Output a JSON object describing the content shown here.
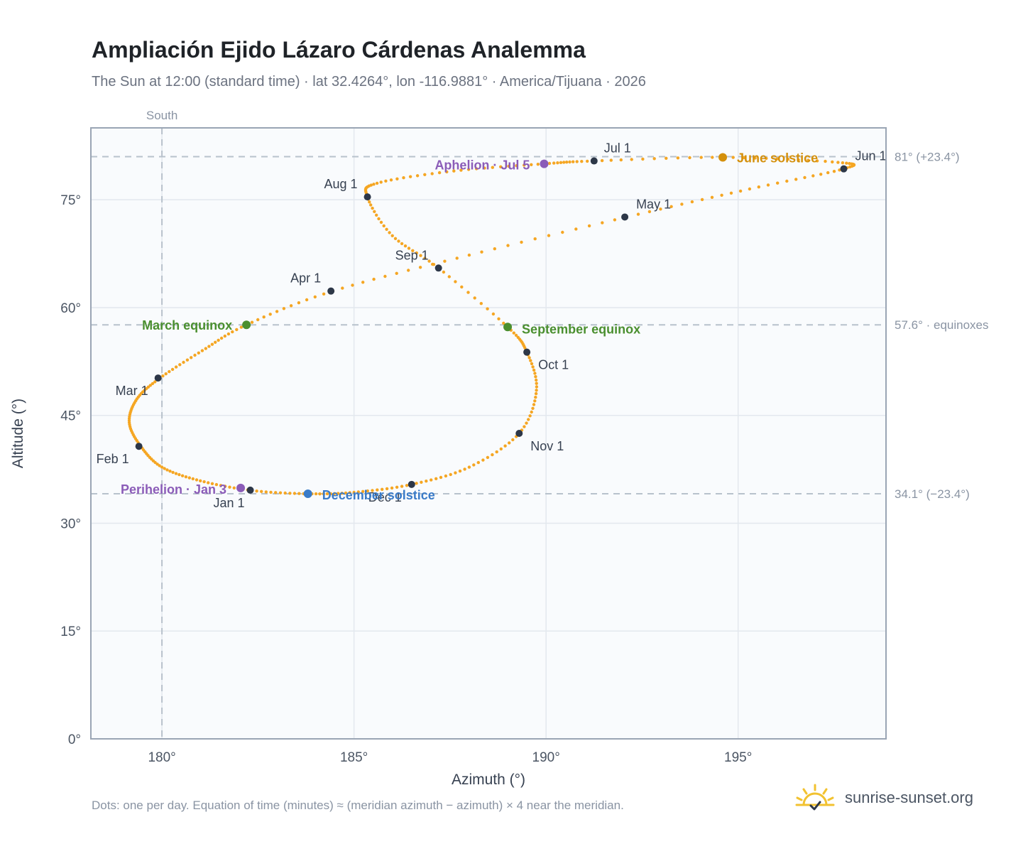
{
  "header": {
    "title": "Ampliación Ejido Lázaro Cárdenas Analemma",
    "subtitle": "The Sun at 12:00 (standard time) · lat 32.4264°, lon -116.9881° · America/Tijuana · 2026"
  },
  "footer": {
    "note": "Dots: one per day. Equation of time (minutes) ≈ (meridian azimuth − azimuth) × 4 near the meridian.",
    "brand": "sunrise-sunset.org"
  },
  "colors": {
    "curve": "#f5a623",
    "month_dot": "#2d3748",
    "equinox": "#4a8f2f",
    "june_solstice": "#d4900c",
    "december_solstice": "#3a7bc8",
    "apsis": "#8b5cb8",
    "reference_line": "#b8c2cc",
    "grid": "#e3e8ee",
    "plot_bg": "#f9fbfd",
    "axis_border": "#9aa5b4"
  },
  "chart_data": {
    "type": "scatter",
    "xlabel": "Azimuth (°)",
    "ylabel": "Altitude (°)",
    "xlim": [
      178.15,
      198.85
    ],
    "ylim": [
      0,
      85
    ],
    "x_ticks": [
      180,
      185,
      190,
      195
    ],
    "x_tick_labels": [
      "180°",
      "185°",
      "190°",
      "195°"
    ],
    "y_ticks": [
      0,
      15,
      30,
      45,
      60,
      75
    ],
    "y_tick_labels": [
      "0°",
      "15°",
      "30°",
      "45°",
      "60°",
      "75°"
    ],
    "grid": true,
    "meridian": {
      "azimuth": 180,
      "label": "South"
    },
    "reference_lines": [
      {
        "altitude": 81.0,
        "label": "81° (+23.4°)"
      },
      {
        "altitude": 57.6,
        "label": "57.6° · equinoxes"
      },
      {
        "altitude": 34.1,
        "label": "34.1° (−23.4°)"
      }
    ],
    "daily_path": [
      {
        "az": 182.35,
        "alt": 34.55
      },
      {
        "az": 181.0,
        "alt": 35.9
      },
      {
        "az": 180.0,
        "alt": 37.8
      },
      {
        "az": 179.45,
        "alt": 40.7
      },
      {
        "az": 179.15,
        "alt": 44.0
      },
      {
        "az": 179.35,
        "alt": 47.3
      },
      {
        "az": 179.95,
        "alt": 50.2
      },
      {
        "az": 181.05,
        "alt": 54.0
      },
      {
        "az": 182.2,
        "alt": 57.6
      },
      {
        "az": 184.45,
        "alt": 62.3
      },
      {
        "az": 188.0,
        "alt": 67.3
      },
      {
        "az": 192.1,
        "alt": 72.6
      },
      {
        "az": 195.3,
        "alt": 76.5
      },
      {
        "az": 197.75,
        "alt": 79.3
      },
      {
        "az": 197.6,
        "alt": 80.2
      },
      {
        "az": 194.6,
        "alt": 80.9
      },
      {
        "az": 191.25,
        "alt": 80.4
      },
      {
        "az": 189.95,
        "alt": 80.0
      },
      {
        "az": 187.6,
        "alt": 79.0
      },
      {
        "az": 185.6,
        "alt": 77.3
      },
      {
        "az": 185.35,
        "alt": 75.4
      },
      {
        "az": 186.0,
        "alt": 70.0
      },
      {
        "az": 187.2,
        "alt": 65.5
      },
      {
        "az": 189.0,
        "alt": 57.3
      },
      {
        "az": 189.5,
        "alt": 53.8
      },
      {
        "az": 189.75,
        "alt": 48.5
      },
      {
        "az": 189.3,
        "alt": 42.5
      },
      {
        "az": 188.0,
        "alt": 37.8
      },
      {
        "az": 186.5,
        "alt": 35.4
      },
      {
        "az": 185.0,
        "alt": 34.3
      },
      {
        "az": 183.8,
        "alt": 34.1
      },
      {
        "az": 182.35,
        "alt": 34.55
      }
    ],
    "month_points": [
      {
        "label": "Jan 1",
        "az": 182.3,
        "alt": 34.6,
        "anchor": "end",
        "dx": -8,
        "dy": 24
      },
      {
        "label": "Feb 1",
        "az": 179.4,
        "alt": 40.7,
        "anchor": "end",
        "dx": -14,
        "dy": 24
      },
      {
        "label": "Mar 1",
        "az": 179.9,
        "alt": 50.2,
        "anchor": "end",
        "dx": -14,
        "dy": 24
      },
      {
        "label": "Apr 1",
        "az": 184.4,
        "alt": 62.3,
        "anchor": "end",
        "dx": -14,
        "dy": -12
      },
      {
        "label": "May 1",
        "az": 192.05,
        "alt": 72.6,
        "anchor": "start",
        "dx": 16,
        "dy": -12
      },
      {
        "label": "Jun 1",
        "az": 197.75,
        "alt": 79.3,
        "anchor": "start",
        "dx": 16,
        "dy": -12
      },
      {
        "label": "Jul 1",
        "az": 191.25,
        "alt": 80.4,
        "anchor": "start",
        "dx": 14,
        "dy": -12
      },
      {
        "label": "Aug 1",
        "az": 185.35,
        "alt": 75.4,
        "anchor": "end",
        "dx": -14,
        "dy": -12
      },
      {
        "label": "Sep 1",
        "az": 187.2,
        "alt": 65.5,
        "anchor": "end",
        "dx": -14,
        "dy": -12
      },
      {
        "label": "Oct 1",
        "az": 189.5,
        "alt": 53.8,
        "anchor": "start",
        "dx": 16,
        "dy": 24
      },
      {
        "label": "Nov 1",
        "az": 189.3,
        "alt": 42.5,
        "anchor": "start",
        "dx": 16,
        "dy": 24
      },
      {
        "label": "Dec 1",
        "az": 186.5,
        "alt": 35.4,
        "anchor": "end",
        "dx": -14,
        "dy": 24
      }
    ],
    "events": [
      {
        "label": "March equinox",
        "az": 182.2,
        "alt": 57.6,
        "color": "#4a8f2f",
        "anchor": "end",
        "dx": -20,
        "dy": 7
      },
      {
        "label": "September equinox",
        "az": 189.0,
        "alt": 57.3,
        "color": "#4a8f2f",
        "anchor": "start",
        "dx": 20,
        "dy": 9
      },
      {
        "label": "June solstice",
        "az": 194.6,
        "alt": 80.9,
        "color": "#d4900c",
        "anchor": "start",
        "dx": 20,
        "dy": 7
      },
      {
        "label": "December solstice",
        "az": 183.8,
        "alt": 34.1,
        "color": "#3a7bc8",
        "anchor": "start",
        "dx": 20,
        "dy": 8
      },
      {
        "label": "Aphelion · Jul 5",
        "az": 189.95,
        "alt": 80.0,
        "color": "#8b5cb8",
        "anchor": "end",
        "dx": -20,
        "dy": 8
      },
      {
        "label": "Perihelion · Jan 3",
        "az": 182.05,
        "alt": 34.9,
        "color": "#8b5cb8",
        "anchor": "end",
        "dx": -20,
        "dy": 8
      }
    ]
  }
}
